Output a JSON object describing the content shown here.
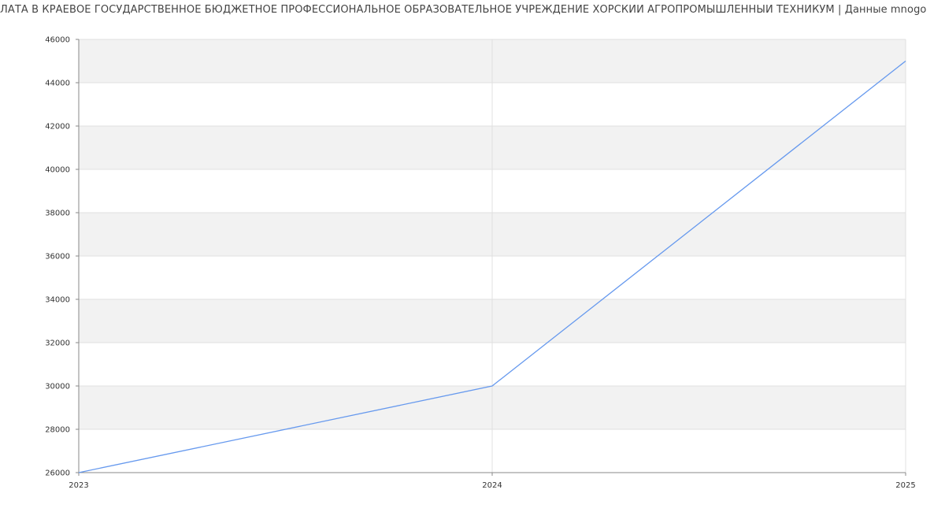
{
  "chart_data": {
    "type": "line",
    "title": "ЛАТА В КРАЕВОЕ ГОСУДАРСТВЕННОЕ БЮДЖЕТНОЕ ПРОФЕССИОНАЛЬНОЕ ОБРАЗОВАТЕЛЬНОЕ УЧРЕЖДЕНИЕ ХОРСКИЙ АГРОПРОМЫШЛЕННЫЙ ТЕХНИКУМ | Данные mnogo",
    "x": [
      "2023",
      "2024",
      "2025"
    ],
    "series": [
      {
        "values": [
          26000,
          30000,
          45000
        ],
        "color": "#6699ee"
      }
    ],
    "xlabel": "",
    "ylabel": "",
    "ylim": [
      26000,
      46000
    ],
    "yticks": [
      "26000",
      "28000",
      "30000",
      "32000",
      "34000",
      "36000",
      "38000",
      "40000",
      "42000",
      "44000",
      "46000"
    ],
    "grid": true,
    "band_color": "#f2f2f2",
    "grid_color": "#e0e0e0",
    "legend": "none"
  }
}
